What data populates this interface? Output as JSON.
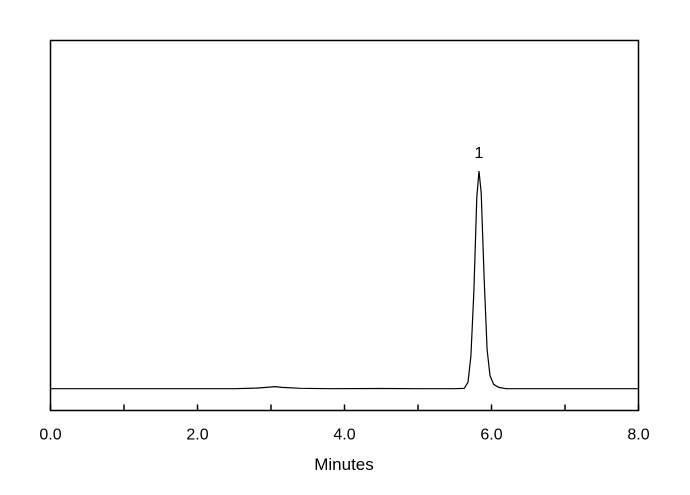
{
  "chart_data": {
    "type": "line",
    "title": "",
    "xlabel": "Minutes",
    "ylabel": "",
    "xlim": [
      0,
      8
    ],
    "ylim": [
      -0.1,
      1.6
    ],
    "x_tick_labels": [
      "0.0",
      "2.0",
      "4.0",
      "6.0",
      "8.0"
    ],
    "x_tick_values": [
      0,
      2,
      4,
      6,
      8
    ],
    "x_minor_ticks": [
      1,
      3,
      5,
      7
    ],
    "y_axis_labels_shown": false,
    "grid": false,
    "line_color": "#000000",
    "peak_labels": [
      {
        "text": "1",
        "x": 5.83,
        "y": 1.0
      }
    ],
    "series": [
      {
        "x": [
          0.0,
          2.5,
          2.8,
          3.0,
          3.05,
          3.15,
          3.4,
          3.8,
          4.5,
          5.0,
          5.5,
          5.63,
          5.68,
          5.72,
          5.76,
          5.8,
          5.83,
          5.86,
          5.9,
          5.94,
          5.98,
          6.03,
          6.1,
          6.2,
          7.0,
          8.0
        ],
        "y": [
          0.0,
          0.0,
          0.003,
          0.008,
          0.01,
          0.006,
          0.002,
          0.0,
          0.001,
          0.0,
          0.0,
          0.002,
          0.03,
          0.15,
          0.45,
          0.88,
          1.0,
          0.9,
          0.5,
          0.18,
          0.06,
          0.02,
          0.006,
          0.0,
          0.0,
          0.0
        ]
      }
    ]
  }
}
